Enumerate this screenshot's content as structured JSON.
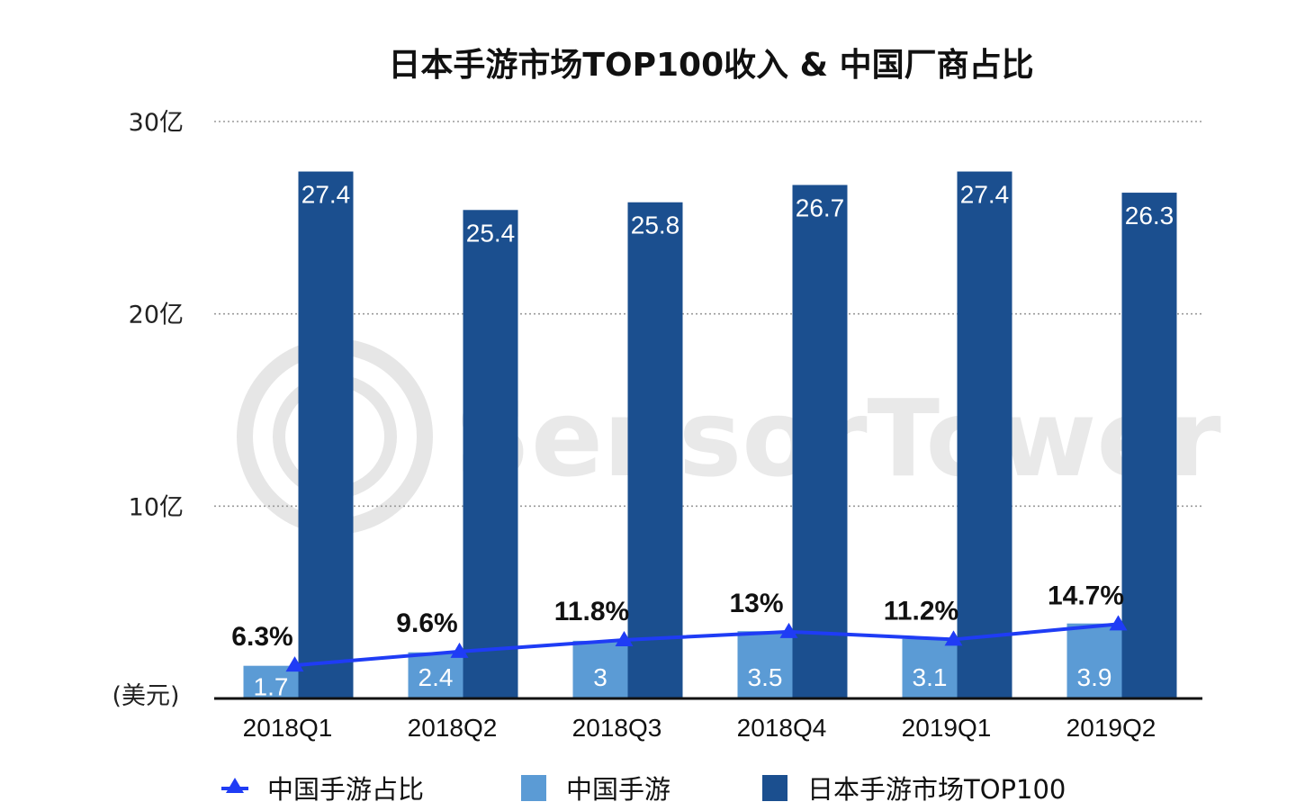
{
  "chart_data": {
    "type": "bar",
    "title": "日本手游市场TOP100收入 & 中国厂商占比",
    "ylabel": "(美元)",
    "ylim": [
      0,
      30
    ],
    "yticks": [
      {
        "value": 10,
        "label": "10亿"
      },
      {
        "value": 20,
        "label": "20亿"
      },
      {
        "value": 30,
        "label": "30亿"
      }
    ],
    "grid": true,
    "legend_position": "bottom",
    "categories": [
      "2018Q1",
      "2018Q2",
      "2018Q3",
      "2018Q4",
      "2019Q1",
      "2019Q2"
    ],
    "series": [
      {
        "name": "中国手游",
        "type": "bar",
        "color": "#5b9bd5",
        "values": [
          1.7,
          2.4,
          3,
          3.5,
          3.1,
          3.9
        ],
        "labels": [
          "1.7",
          "2.4",
          "3",
          "3.5",
          "3.1",
          "3.9"
        ]
      },
      {
        "name": "日本手游市场TOP100",
        "type": "bar",
        "color": "#1b4f8f",
        "values": [
          27.4,
          25.4,
          25.8,
          26.7,
          27.4,
          26.3
        ],
        "labels": [
          "27.4",
          "25.4",
          "25.8",
          "26.7",
          "27.4",
          "26.3"
        ]
      },
      {
        "name": "中国手游占比",
        "type": "line",
        "color": "#1f3cf5",
        "marker": "triangle",
        "values": [
          6.3,
          9.6,
          11.8,
          13,
          11.2,
          14.7
        ],
        "labels": [
          "6.3%",
          "9.6%",
          "11.8%",
          "13%",
          "11.2%",
          "14.7%"
        ]
      }
    ],
    "watermark": "SensorTower"
  }
}
